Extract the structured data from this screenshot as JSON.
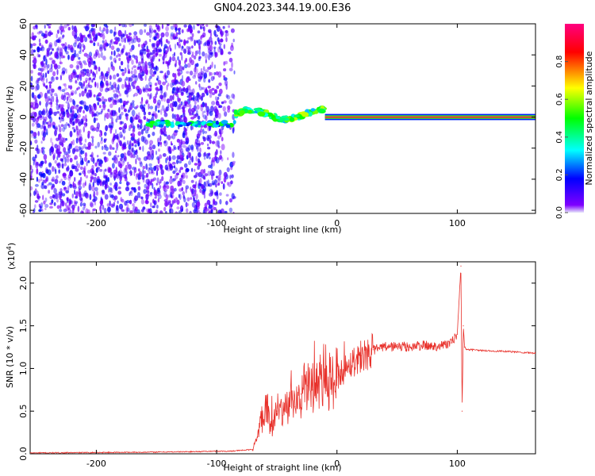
{
  "title": "GN04.2023.344.19.00.E36",
  "chart_data": [
    {
      "type": "heatmap",
      "name": "spectrogram",
      "title": "GN04.2023.344.19.00.E36",
      "xlabel": "Height of straight line (km)",
      "ylabel": "Frequency (Hz)",
      "xlim": [
        -255,
        165
      ],
      "ylim": [
        -62,
        60
      ],
      "xticks": [
        "-200",
        "-100",
        "0",
        "100"
      ],
      "xtick_values": [
        -200,
        -100,
        0,
        100
      ],
      "yticks": [
        "-60",
        "-40",
        "-20",
        "0",
        "20",
        "40",
        "60"
      ],
      "ytick_values": [
        -60,
        -40,
        -20,
        0,
        20,
        40,
        60
      ],
      "colorbar": {
        "label": "Normalized spectral amplitude",
        "range": [
          0,
          1
        ],
        "ticks": [
          "0.0",
          "0.2",
          "0.4",
          "0.6",
          "0.8"
        ],
        "tick_values": [
          0.0,
          0.2,
          0.4,
          0.6,
          0.8
        ],
        "stops": [
          "#e6e6fa",
          "#7f00ff",
          "#0000ff",
          "#00ffff",
          "#00ff00",
          "#ffff00",
          "#ff0000",
          "#ff0080"
        ]
      },
      "regions": [
        {
          "desc": "broadband noise",
          "x": [
            -255,
            -85
          ],
          "freq": [
            -62,
            60
          ],
          "amplitude": 0.15
        },
        {
          "desc": "signal onset",
          "x": [
            -157,
            -85
          ],
          "freq": [
            -6,
            -3
          ],
          "amplitude": 0.35
        },
        {
          "desc": "wandering band",
          "x": [
            -85,
            -10
          ],
          "freq": [
            -4,
            6
          ],
          "amplitude": 0.4
        },
        {
          "desc": "steady line",
          "x": [
            -10,
            165
          ],
          "freq": [
            -1,
            1
          ],
          "amplitude": 0.95
        }
      ]
    },
    {
      "type": "line",
      "name": "snr",
      "xlabel": "Height of straight line (km)",
      "ylabel": "SNR (10 * v/v)",
      "scale_label": "(x10",
      "scale_exp": "4",
      "scale_close": ")",
      "xlim": [
        -255,
        165
      ],
      "ylim": [
        0,
        2.25
      ],
      "xticks": [
        "-200",
        "-100",
        "0",
        "100"
      ],
      "xtick_values": [
        -200,
        -100,
        0,
        100
      ],
      "yticks": [
        "0.0",
        "0.5",
        "1.0",
        "1.5",
        "2.0"
      ],
      "ytick_values": [
        0.0,
        0.5,
        1.0,
        1.5,
        2.0
      ],
      "color": "#e8302a",
      "series": [
        {
          "name": "SNR",
          "x": [
            -255,
            -200,
            -150,
            -120,
            -100,
            -90,
            -70,
            -66,
            -62,
            -58,
            -55,
            -50,
            -45,
            -40,
            -35,
            -30,
            -25,
            -20,
            -15,
            -10,
            -5,
            0,
            10,
            20,
            30,
            40,
            50,
            60,
            70,
            80,
            90,
            95,
            100,
            103,
            104,
            105,
            106,
            108,
            110,
            120,
            140,
            165
          ],
          "y": [
            0.01,
            0.015,
            0.02,
            0.025,
            0.03,
            0.03,
            0.05,
            0.2,
            0.45,
            0.6,
            0.3,
            0.5,
            0.45,
            0.6,
            0.55,
            0.7,
            0.8,
            0.75,
            0.85,
            0.9,
            0.82,
            0.9,
            1.05,
            1.15,
            1.22,
            1.25,
            1.26,
            1.25,
            1.27,
            1.26,
            1.28,
            1.3,
            1.4,
            2.2,
            0.5,
            1.5,
            1.25,
            1.22,
            1.22,
            1.21,
            1.2,
            1.18
          ]
        }
      ]
    }
  ]
}
